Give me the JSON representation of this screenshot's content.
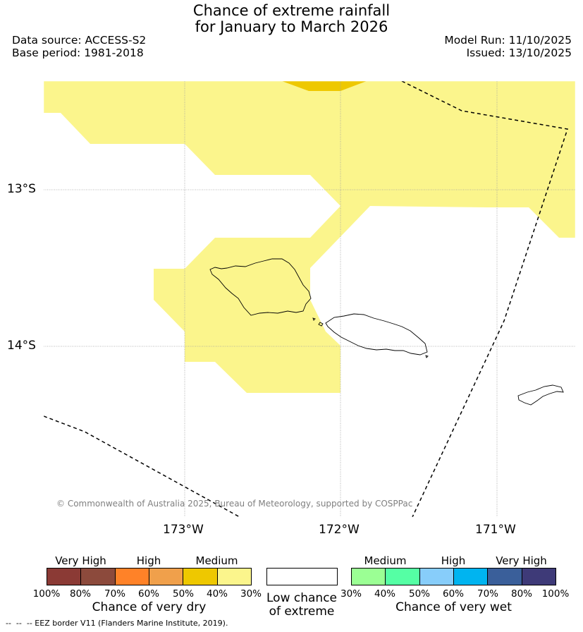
{
  "header": {
    "title_line1": "Chance of extreme rainfall",
    "title_line2": "for January to March 2026",
    "data_source": "Data source: ACCESS-S2",
    "base_period": "Base period: 1981-2018",
    "model_run": "Model Run: 11/10/2025",
    "issued": "Issued: 13/10/2025"
  },
  "map": {
    "lat_labels": [
      "13°S",
      "14°S"
    ],
    "lon_labels": [
      "173°W",
      "172°W",
      "171°W"
    ],
    "copyright": "© Commonwealth of Australia 2025, Bureau of Meteorology, supported by COSPPac"
  },
  "legend": {
    "dry": {
      "labels": [
        "Very High",
        "High",
        "Medium"
      ],
      "pcts": [
        "100%",
        "80%",
        "70%",
        "60%",
        "50%",
        "40%",
        "30%"
      ],
      "caption": "Chance of very dry",
      "colors": [
        "#8b3a35",
        "#8c4a3c",
        "#ff8228",
        "#f0a04b",
        "#eec800",
        "#fbf58c"
      ]
    },
    "neutral": {
      "caption_line1": "Low chance",
      "caption_line2": "of extreme",
      "color": "#ffffff"
    },
    "wet": {
      "labels": [
        "Medium",
        "High",
        "Very High"
      ],
      "pcts": [
        "30%",
        "40%",
        "50%",
        "60%",
        "70%",
        "80%",
        "100%"
      ],
      "caption": "Chance of very wet",
      "colors": [
        "#9bff94",
        "#55ffa4",
        "#87cdfa",
        "#00b4f0",
        "#3a5f9a",
        "#3e3a78"
      ]
    }
  },
  "footnote": "--  --  -- EEZ border V11 (Flanders Marine Institute, 2019)."
}
